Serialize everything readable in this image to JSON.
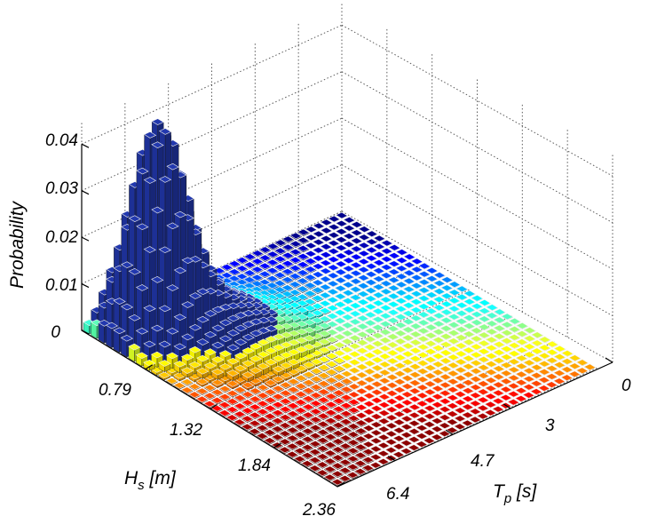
{
  "chart_data": {
    "type": "bar3d",
    "title": "",
    "zlabel": "Probability",
    "xlabel": "H_s [m]",
    "ylabel": "T_p [s]",
    "z_ticks": [
      "0",
      "0.01",
      "0.02",
      "0.03",
      "0.04"
    ],
    "zlim": [
      0,
      0.045
    ],
    "hs_ticks": [
      "0.79",
      "1.32",
      "1.84",
      "2.36"
    ],
    "tp_ticks": [
      "0",
      "3",
      "4.7",
      "6.4"
    ],
    "hs_range": [
      0.27,
      2.36
    ],
    "tp_range": [
      0,
      8.1
    ],
    "grid": true,
    "colormap": "jet",
    "peak": {
      "hs": 0.5,
      "tp": 6.6,
      "probability": 0.042
    },
    "nonzero_band": [
      {
        "hs": 0.3,
        "tp_start": 1.2,
        "tp_end": 8.1
      },
      {
        "hs": 0.6,
        "tp_start": 2.2,
        "tp_end": 8.1
      },
      {
        "hs": 0.9,
        "tp_start": 3.0,
        "tp_end": 8.1
      },
      {
        "hs": 1.2,
        "tp_start": 3.8,
        "tp_end": 8.1
      },
      {
        "hs": 1.5,
        "tp_start": 4.6,
        "tp_end": 8.1
      },
      {
        "hs": 1.8,
        "tp_start": 5.4,
        "tp_end": 8.1
      },
      {
        "hs": 2.1,
        "tp_start": 6.2,
        "tp_end": 8.1
      },
      {
        "hs": 2.36,
        "tp_start": 7.0,
        "tp_end": 8.1
      }
    ]
  }
}
